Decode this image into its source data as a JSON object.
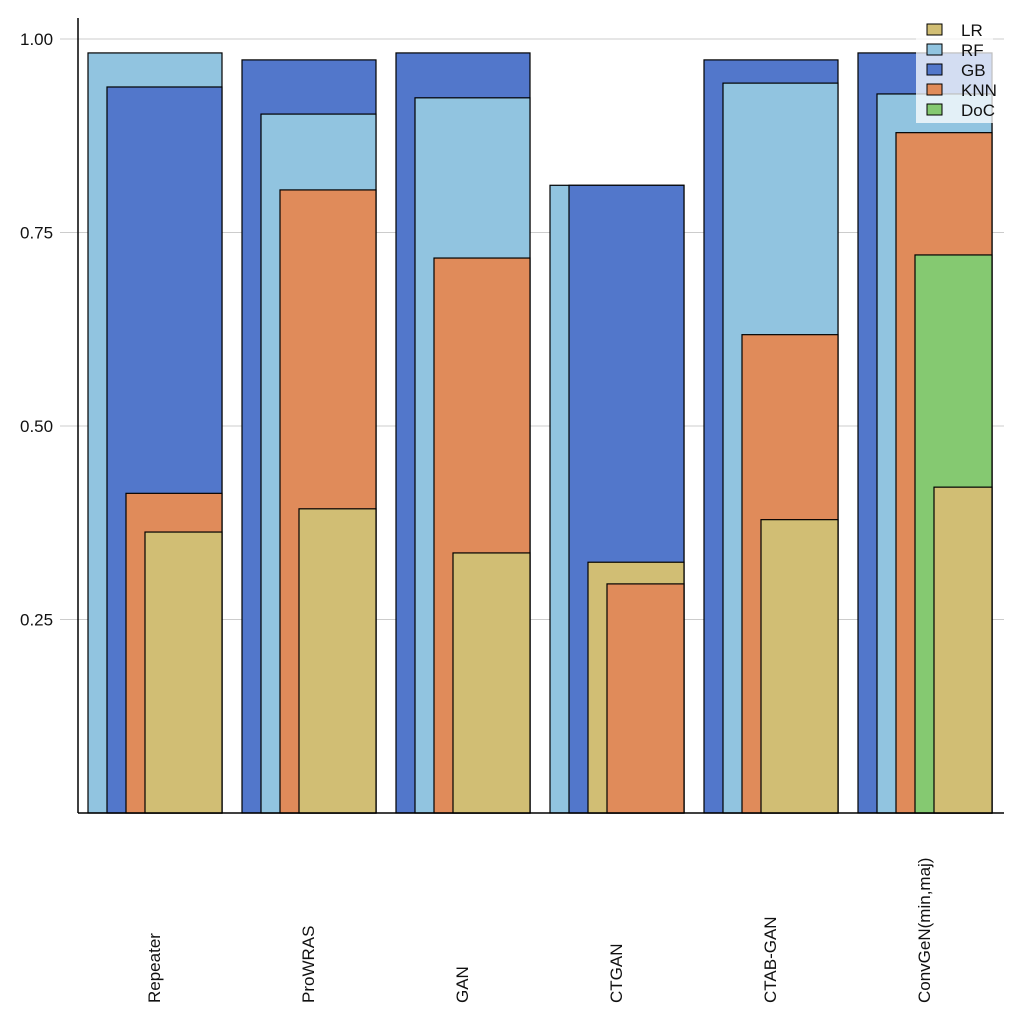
{
  "chart_data": {
    "type": "bar",
    "title": "",
    "xlabel": "",
    "ylabel": "",
    "ylim": [
      0,
      1.03
    ],
    "yticks": [
      0.25,
      0.5,
      0.75,
      1.0
    ],
    "ytick_labels": [
      "0.25",
      "0.50",
      "0.75",
      "1.00"
    ],
    "grid": "horizontal",
    "legend_position": "top-right",
    "layout": "overlapping nested bars per category, each later-drawn series offset to the right",
    "categories": [
      "Repeater",
      "ProWRAS",
      "GAN",
      "CTGAN",
      "CTAB-GAN",
      "ConvGeN(min,maj)"
    ],
    "legend": [
      {
        "name": "LR",
        "color": "#d1be74"
      },
      {
        "name": "RF",
        "color": "#91c4e0"
      },
      {
        "name": "GB",
        "color": "#5277cb"
      },
      {
        "name": "KNN",
        "color": "#e08b5a"
      },
      {
        "name": "DoC",
        "color": "#85c971"
      }
    ],
    "series": [
      {
        "name": "LR",
        "color": "#d1be74",
        "values": [
          0.363,
          0.393,
          0.336,
          0.324,
          0.379,
          0.421
        ]
      },
      {
        "name": "RF",
        "color": "#91c4e0",
        "values": [
          0.982,
          0.903,
          0.924,
          0.811,
          0.943,
          0.929
        ]
      },
      {
        "name": "GB",
        "color": "#5277cb",
        "values": [
          0.938,
          0.973,
          0.982,
          0.811,
          0.973,
          0.982
        ]
      },
      {
        "name": "KNN",
        "color": "#e08b5a",
        "values": [
          0.413,
          0.805,
          0.717,
          0.296,
          0.618,
          0.879
        ]
      },
      {
        "name": "DoC",
        "color": "#85c971",
        "values": [
          null,
          null,
          null,
          null,
          null,
          0.721
        ]
      }
    ],
    "draw_order": [
      [
        "RF",
        "GB",
        "KNN",
        "LR"
      ],
      [
        "GB",
        "RF",
        "KNN",
        "LR"
      ],
      [
        "GB",
        "RF",
        "KNN",
        "LR"
      ],
      [
        "RF",
        "GB",
        "LR",
        "KNN"
      ],
      [
        "GB",
        "RF",
        "KNN",
        "LR"
      ],
      [
        "GB",
        "RF",
        "KNN",
        "DoC",
        "LR"
      ]
    ]
  }
}
